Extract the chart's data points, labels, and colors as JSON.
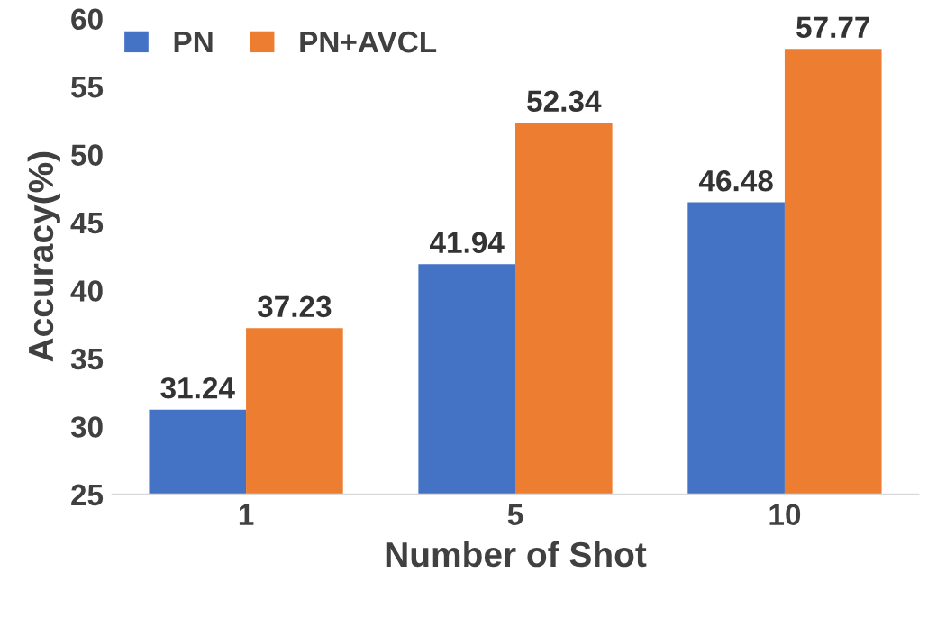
{
  "chart_data": {
    "type": "bar",
    "xlabel": "Number of Shot",
    "ylabel": "Accuracy(%)",
    "categories": [
      "1",
      "5",
      "10"
    ],
    "series": [
      {
        "name": "PN",
        "color": "#4472c4",
        "values": [
          31.24,
          41.94,
          46.48
        ]
      },
      {
        "name": "PN+AVCL",
        "color": "#ed7d31",
        "values": [
          37.23,
          52.34,
          57.77
        ]
      }
    ],
    "ylim": [
      25,
      60
    ],
    "yticks": [
      25,
      30,
      35,
      40,
      45,
      50,
      55,
      60
    ],
    "grid": false,
    "legend": "top left",
    "data_labels": true
  }
}
